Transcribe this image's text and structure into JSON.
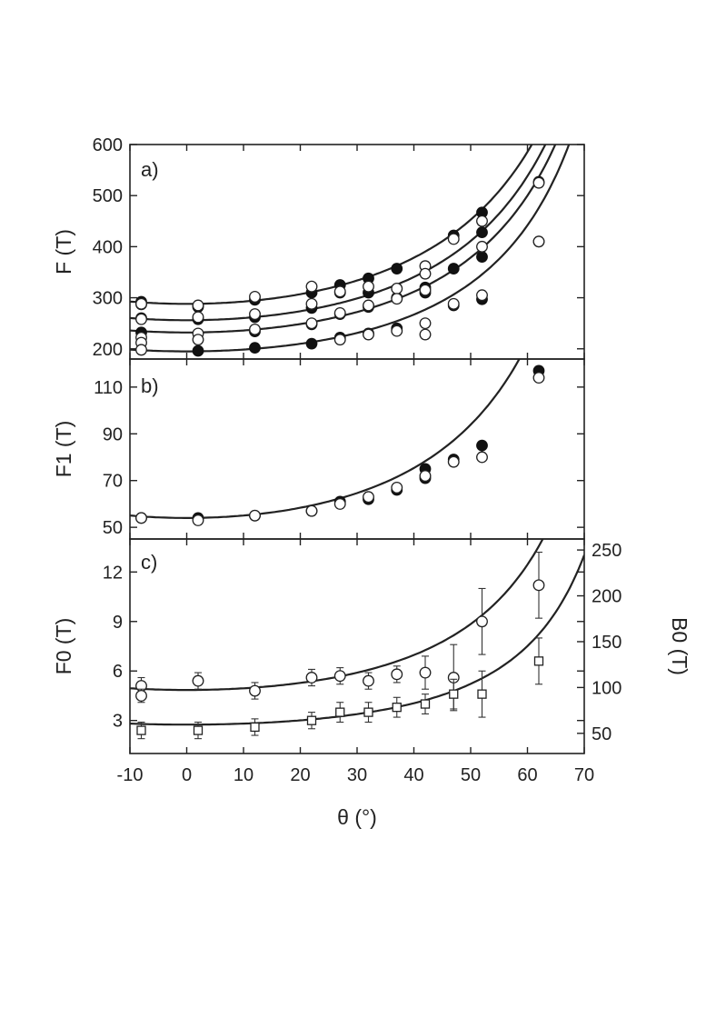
{
  "chart_data": [
    {
      "type": "scatter",
      "panel_label": "a)",
      "ylabel": "F (T)",
      "xlim": [
        -10,
        70
      ],
      "ylim": [
        180,
        600
      ],
      "yticks": [
        200,
        300,
        400,
        500,
        600
      ],
      "series": [
        {
          "marker": "filled",
          "points": [
            [
              -8,
              292
            ],
            [
              -8,
              287
            ],
            [
              -8,
              260
            ],
            [
              -8,
              232
            ],
            [
              2,
              282
            ],
            [
              2,
              258
            ],
            [
              2,
              196
            ],
            [
              12,
              296
            ],
            [
              12,
              262
            ],
            [
              12,
              234
            ],
            [
              12,
              202
            ],
            [
              22,
              310
            ],
            [
              22,
              280
            ],
            [
              22,
              248
            ],
            [
              22,
              210
            ],
            [
              27,
              325
            ],
            [
              27,
              310
            ],
            [
              27,
              268
            ],
            [
              27,
              222
            ],
            [
              32,
              338
            ],
            [
              32,
              310
            ],
            [
              32,
              282
            ],
            [
              32,
              230
            ],
            [
              37,
              357
            ],
            [
              37,
              300
            ],
            [
              37,
              240
            ],
            [
              42,
              320
            ],
            [
              42,
              310
            ],
            [
              47,
              422
            ],
            [
              47,
              357
            ],
            [
              47,
              285
            ],
            [
              52,
              467
            ],
            [
              52,
              428
            ],
            [
              52,
              380
            ],
            [
              52,
              297
            ],
            [
              62,
              527
            ],
            [
              62,
              410
            ]
          ]
        },
        {
          "marker": "open",
          "points": [
            [
              -8,
              288
            ],
            [
              -8,
              258
            ],
            [
              -8,
              222
            ],
            [
              -8,
              212
            ],
            [
              -8,
              198
            ],
            [
              2,
              285
            ],
            [
              2,
              262
            ],
            [
              2,
              230
            ],
            [
              2,
              218
            ],
            [
              12,
              302
            ],
            [
              12,
              268
            ],
            [
              12,
              238
            ],
            [
              22,
              322
            ],
            [
              22,
              288
            ],
            [
              22,
              250
            ],
            [
              27,
              312
            ],
            [
              27,
              270
            ],
            [
              27,
              218
            ],
            [
              32,
              322
            ],
            [
              32,
              285
            ],
            [
              32,
              228
            ],
            [
              37,
              318
            ],
            [
              37,
              298
            ],
            [
              37,
              235
            ],
            [
              42,
              362
            ],
            [
              42,
              347
            ],
            [
              42,
              315
            ],
            [
              42,
              250
            ],
            [
              42,
              228
            ],
            [
              47,
              415
            ],
            [
              47,
              288
            ],
            [
              52,
              450
            ],
            [
              52,
              400
            ],
            [
              52,
              305
            ],
            [
              62,
              525
            ],
            [
              62,
              410
            ]
          ]
        }
      ],
      "fits": [
        {
          "y0": 288,
          "a": 0.074
        },
        {
          "y0": 256,
          "a": 0.082
        },
        {
          "y0": 232,
          "a": 0.088
        },
        {
          "y0": 195,
          "a": 0.1
        }
      ]
    },
    {
      "type": "scatter",
      "panel_label": "b)",
      "ylabel": "F1 (T)",
      "xlim": [
        -10,
        70
      ],
      "ylim": [
        45,
        122
      ],
      "yticks": [
        50,
        70,
        90,
        110
      ],
      "series": [
        {
          "marker": "filled",
          "points": [
            [
              -8,
              54
            ],
            [
              2,
              54
            ],
            [
              12,
              55
            ],
            [
              22,
              57
            ],
            [
              27,
              61
            ],
            [
              32,
              62
            ],
            [
              37,
              66
            ],
            [
              42,
              71
            ],
            [
              42,
              75
            ],
            [
              47,
              79
            ],
            [
              52,
              85
            ],
            [
              62,
              117
            ]
          ]
        },
        {
          "marker": "open",
          "points": [
            [
              -8,
              54
            ],
            [
              2,
              53
            ],
            [
              12,
              55
            ],
            [
              22,
              57
            ],
            [
              27,
              60
            ],
            [
              32,
              63
            ],
            [
              37,
              67
            ],
            [
              42,
              72
            ],
            [
              47,
              78
            ],
            [
              52,
              80
            ],
            [
              62,
              114
            ]
          ]
        }
      ],
      "fits": [
        {
          "y0": 54,
          "a": 0.112
        }
      ]
    },
    {
      "type": "scatter",
      "panel_label": "c)",
      "ylabel": "F0 (T)",
      "y2label": "B0 (T)",
      "xlim": [
        -10,
        70
      ],
      "ylim": [
        1,
        14
      ],
      "yticks": [
        3,
        6,
        9,
        12
      ],
      "y2lim": [
        28,
        262
      ],
      "y2ticks": [
        50,
        100,
        150,
        200,
        250
      ],
      "xlabel": "θ (°)",
      "xticks": [
        -10,
        0,
        10,
        20,
        30,
        40,
        50,
        60,
        70
      ],
      "series": [
        {
          "marker": "open-circle",
          "points": [
            [
              -8,
              5.1,
              0.5
            ],
            [
              -8,
              4.5,
              0.4
            ],
            [
              2,
              5.4,
              0.5
            ],
            [
              12,
              4.8,
              0.5
            ],
            [
              22,
              5.6,
              0.5
            ],
            [
              27,
              5.7,
              0.5
            ],
            [
              32,
              5.4,
              0.5
            ],
            [
              37,
              5.8,
              0.5
            ],
            [
              42,
              5.9,
              1.0
            ],
            [
              47,
              5.6,
              2.0
            ],
            [
              52,
              9.0,
              2.0
            ],
            [
              62,
              11.2,
              2.0
            ]
          ]
        },
        {
          "marker": "open-square",
          "points": [
            [
              -8,
              2.4,
              0.5
            ],
            [
              2,
              2.4,
              0.5
            ],
            [
              12,
              2.6,
              0.5
            ],
            [
              22,
              3.0,
              0.5
            ],
            [
              27,
              3.5,
              0.6
            ],
            [
              32,
              3.5,
              0.6
            ],
            [
              37,
              3.8,
              0.6
            ],
            [
              42,
              4.0,
              0.6
            ],
            [
              47,
              4.6,
              0.9
            ],
            [
              52,
              4.6,
              1.4
            ],
            [
              62,
              6.6,
              1.4
            ]
          ]
        }
      ],
      "fits": [
        {
          "y0": 4.85,
          "a": 0.13
        },
        {
          "y0": 2.75,
          "a": 0.145
        }
      ]
    }
  ]
}
